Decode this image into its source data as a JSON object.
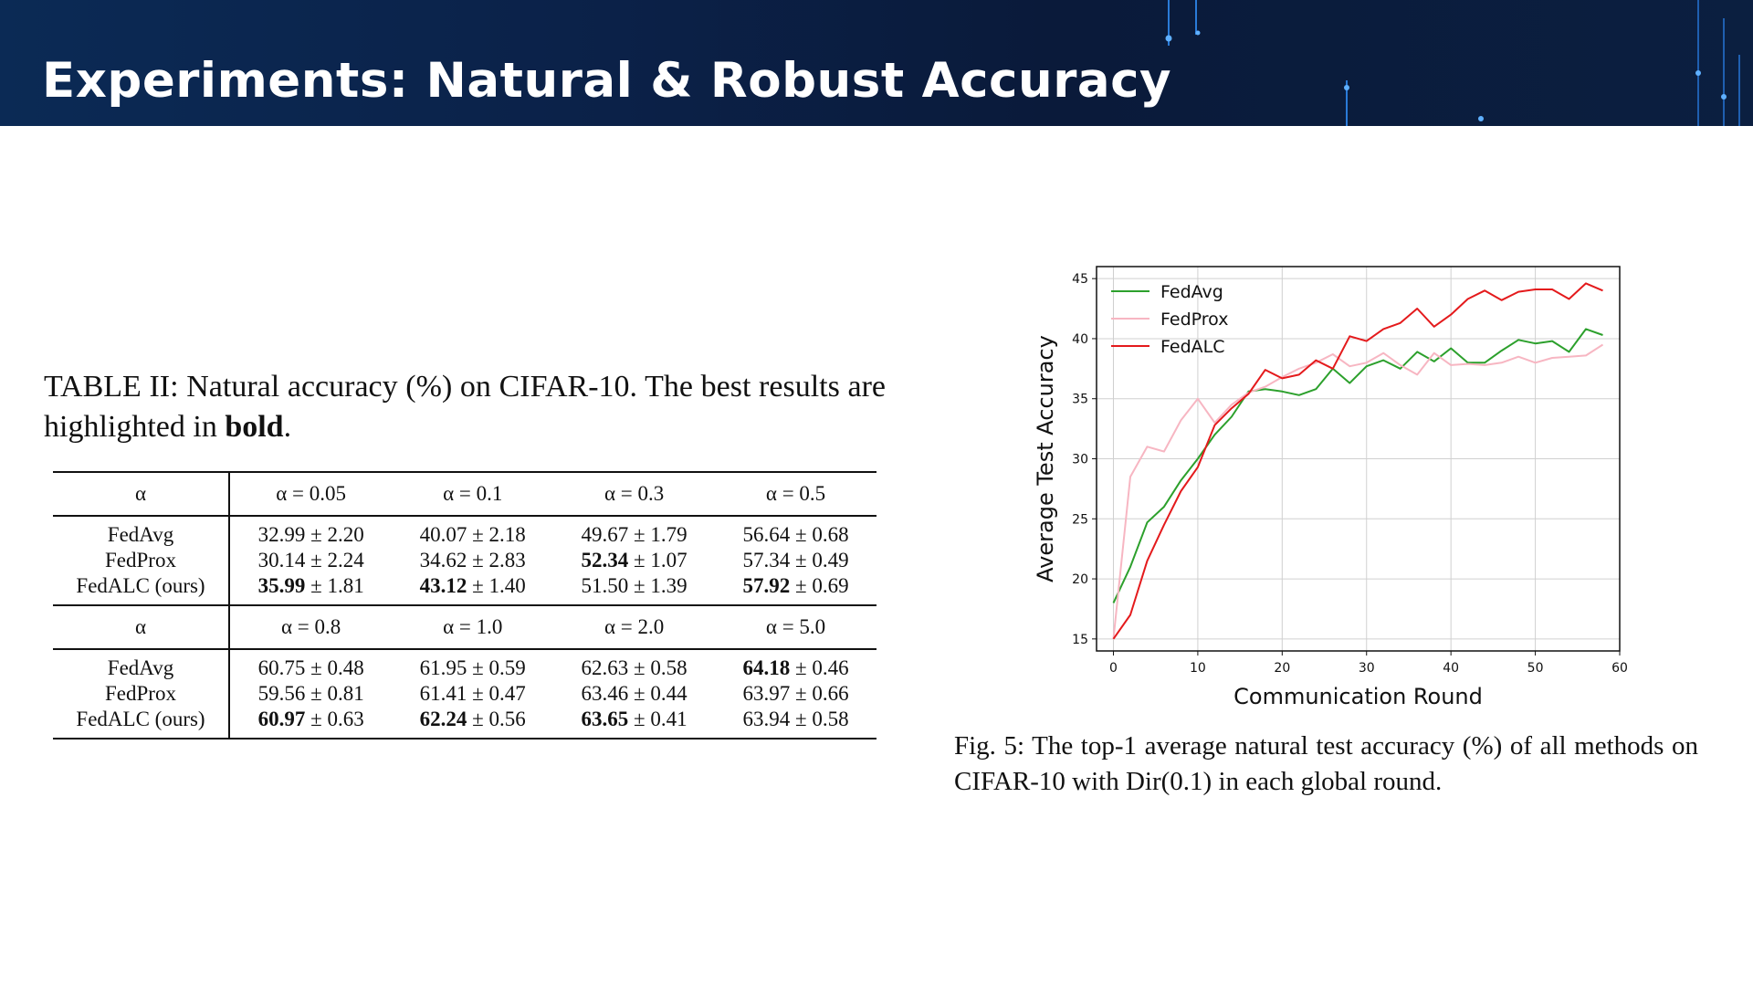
{
  "slide": {
    "title": "Experiments: Natural & Robust Accuracy"
  },
  "table": {
    "caption_prefix": "TABLE II: Natural accuracy (%) on CIFAR-10. The best results are highlighted in ",
    "caption_bold": "bold",
    "caption_suffix": ".",
    "blocks": [
      {
        "header": [
          "α",
          "α = 0.05",
          "α = 0.1",
          "α = 0.3",
          "α = 0.5"
        ],
        "rows": [
          {
            "method": "FedAvg",
            "cells": [
              {
                "mean": "32.99",
                "std": "2.20",
                "bold": false
              },
              {
                "mean": "40.07",
                "std": "2.18",
                "bold": false
              },
              {
                "mean": "49.67",
                "std": "1.79",
                "bold": false
              },
              {
                "mean": "56.64",
                "std": "0.68",
                "bold": false
              }
            ]
          },
          {
            "method": "FedProx",
            "cells": [
              {
                "mean": "30.14",
                "std": "2.24",
                "bold": false
              },
              {
                "mean": "34.62",
                "std": "2.83",
                "bold": false
              },
              {
                "mean": "52.34",
                "std": "1.07",
                "bold": true
              },
              {
                "mean": "57.34",
                "std": "0.49",
                "bold": false
              }
            ]
          },
          {
            "method": "FedALC (ours)",
            "cells": [
              {
                "mean": "35.99",
                "std": "1.81",
                "bold": true
              },
              {
                "mean": "43.12",
                "std": "1.40",
                "bold": true
              },
              {
                "mean": "51.50",
                "std": "1.39",
                "bold": false
              },
              {
                "mean": "57.92",
                "std": "0.69",
                "bold": true
              }
            ]
          }
        ]
      },
      {
        "header": [
          "α",
          "α = 0.8",
          "α = 1.0",
          "α = 2.0",
          "α = 5.0"
        ],
        "rows": [
          {
            "method": "FedAvg",
            "cells": [
              {
                "mean": "60.75",
                "std": "0.48",
                "bold": false
              },
              {
                "mean": "61.95",
                "std": "0.59",
                "bold": false
              },
              {
                "mean": "62.63",
                "std": "0.58",
                "bold": false
              },
              {
                "mean": "64.18",
                "std": "0.46",
                "bold": true
              }
            ]
          },
          {
            "method": "FedProx",
            "cells": [
              {
                "mean": "59.56",
                "std": "0.81",
                "bold": false
              },
              {
                "mean": "61.41",
                "std": "0.47",
                "bold": false
              },
              {
                "mean": "63.46",
                "std": "0.44",
                "bold": false
              },
              {
                "mean": "63.97",
                "std": "0.66",
                "bold": false
              }
            ]
          },
          {
            "method": "FedALC (ours)",
            "cells": [
              {
                "mean": "60.97",
                "std": "0.63",
                "bold": true
              },
              {
                "mean": "62.24",
                "std": "0.56",
                "bold": true
              },
              {
                "mean": "63.65",
                "std": "0.41",
                "bold": true
              },
              {
                "mean": "63.94",
                "std": "0.58",
                "bold": false
              }
            ]
          }
        ]
      }
    ]
  },
  "figure": {
    "caption": "Fig. 5: The top-1 average natural test accuracy (%) of all methods on CIFAR-10 with Dir(0.1) in each global round."
  },
  "chart_data": {
    "type": "line",
    "title": "",
    "xlabel": "Communication Round",
    "ylabel": "Average Test Accuracy",
    "xlim": [
      -2,
      60
    ],
    "ylim": [
      14,
      46
    ],
    "xticks": [
      0,
      10,
      20,
      30,
      40,
      50,
      60
    ],
    "yticks": [
      15,
      20,
      25,
      30,
      35,
      40,
      45
    ],
    "grid": true,
    "legend_position": "top-left",
    "x": [
      0,
      2,
      4,
      6,
      8,
      10,
      12,
      14,
      16,
      18,
      20,
      22,
      24,
      26,
      28,
      30,
      32,
      34,
      36,
      38,
      40,
      42,
      44,
      46,
      48,
      50,
      52,
      54,
      56,
      58
    ],
    "series": [
      {
        "name": "FedAvg",
        "color": "#2ca02c",
        "values": [
          18,
          21,
          24.7,
          26,
          28.2,
          30,
          32,
          33.5,
          35.6,
          35.8,
          35.6,
          35.3,
          35.8,
          37.5,
          36.3,
          37.7,
          38.2,
          37.5,
          38.9,
          38.1,
          39.2,
          38,
          38,
          39,
          39.9,
          39.6,
          39.8,
          38.9,
          40.8,
          40.3
        ]
      },
      {
        "name": "FedProx",
        "color": "#f7b6c2",
        "values": [
          15,
          28.5,
          31,
          30.6,
          33.2,
          35,
          33,
          34.5,
          35.5,
          36,
          36.8,
          37.5,
          38,
          38.7,
          37.7,
          38,
          38.8,
          37.8,
          37,
          38.8,
          37.8,
          37.9,
          37.8,
          38,
          38.5,
          38,
          38.4,
          38.5,
          38.6,
          39.5
        ]
      },
      {
        "name": "FedALC",
        "color": "#e41a1c",
        "values": [
          15,
          17,
          21.5,
          24.5,
          27.3,
          29.3,
          32.8,
          34.2,
          35.4,
          37.4,
          36.7,
          37,
          38.2,
          37.5,
          40.2,
          39.8,
          40.8,
          41.3,
          42.5,
          41,
          42,
          43.3,
          44,
          43.2,
          43.9,
          44.1,
          44.1,
          43.3,
          44.6,
          44
        ]
      }
    ]
  }
}
